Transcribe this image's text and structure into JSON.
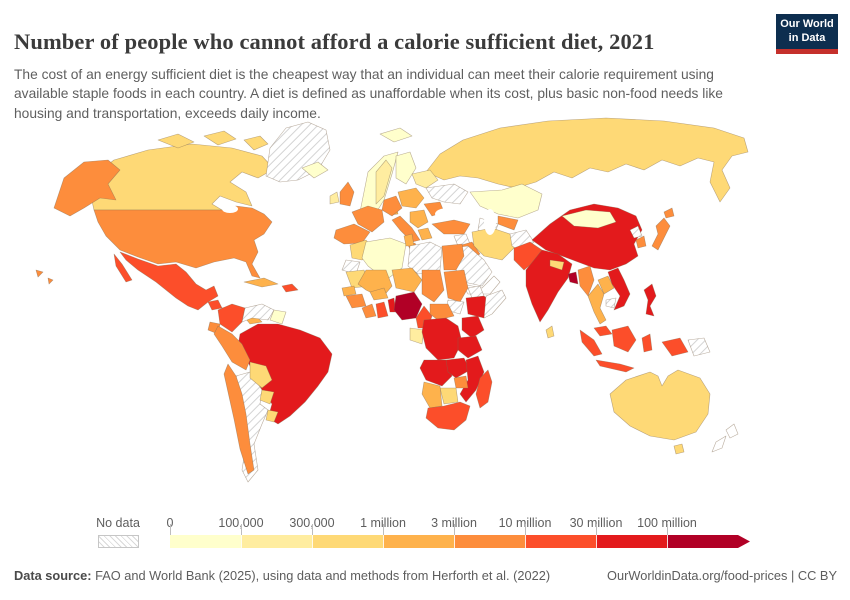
{
  "header": {
    "title": "Number of people who cannot afford a calorie sufficient diet, 2021",
    "subtitle": "The cost of an energy sufficient diet is the cheapest way that an individual can meet their calorie requirement using available staple foods in each country. A diet is defined as unaffordable when its cost, plus basic non-food needs like housing and transportation, exceeds daily income.",
    "logo": {
      "line1": "Our World",
      "line2": "in Data",
      "bg_color": "#0d2e4f",
      "accent_color": "#c5302b"
    }
  },
  "legend": {
    "no_data_label": "No data",
    "labels": [
      "0",
      "100,000",
      "300,000",
      "1 million",
      "3 million",
      "10 million",
      "30 million",
      "100 million"
    ]
  },
  "footer": {
    "source_label": "Data source:",
    "source_text": " FAO and World Bank (2025), using data and methods from Herforth et al. (2022)",
    "right_text": "OurWorldinData.org/food-prices | CC BY"
  },
  "chart_data": {
    "type": "choropleth_map",
    "title": "Number of people who cannot afford a calorie sufficient diet, 2021",
    "year": 2021,
    "unit": "people",
    "legend_labels": [
      "0",
      "100,000",
      "300,000",
      "1 million",
      "3 million",
      "10 million",
      "30 million",
      "100 million"
    ],
    "bin_ranges": [
      "0 to 100,000",
      "100,000 to 300,000",
      "300,000 to 1 million",
      "1 million to 3 million",
      "3 million to 10 million",
      "10 million to 30 million",
      "30 million to 100 million",
      "over 100 million"
    ],
    "colors": [
      "#ffffcc",
      "#ffeda0",
      "#fed976",
      "#feb24c",
      "#fd8d3c",
      "#fc4e2a",
      "#e31a1c",
      "#b10026"
    ],
    "no_data_fill": "hatched",
    "countries": {
      "canada": 2,
      "usa": 4,
      "greenland": "no_data",
      "mexico": 5,
      "guatemala": 5,
      "honduras_nicaragua": 4,
      "costa_rica_panama": 3,
      "cuba": 3,
      "hispaniola": 5,
      "colombia": 5,
      "venezuela": "no_data",
      "guyana_suriname": 0,
      "ecuador": 4,
      "peru": 4,
      "brazil": 6,
      "bolivia": 2,
      "paraguay": 2,
      "uruguay": 2,
      "chile": 4,
      "argentina": "no_data",
      "iceland": 0,
      "uk": 4,
      "ireland": 1,
      "norway_sweden": 0,
      "sweden": 1,
      "finland": 0,
      "denmark": 3,
      "france": 4,
      "spain": 4,
      "germany": 4,
      "poland": 3,
      "italy": 4,
      "balkans": 3,
      "greece": 3,
      "romania": 4,
      "ukraine": "no_data",
      "belarus_baltics": 1,
      "svalbard": 0,
      "russia": 2,
      "kazakhstan": 0,
      "uzbekistan": 4,
      "turkmenistan": "no_data",
      "turkey": 4,
      "syria": "no_data",
      "iraq": 4,
      "iran": 2,
      "saudi_arabia": "no_data",
      "yemen_oman": "blank",
      "afghanistan": "no_data",
      "pakistan": 5,
      "india": 6,
      "nepal": 2,
      "bangladesh": 7,
      "sri_lanka": 2,
      "china": 6,
      "mongolia": 0,
      "north_korea": "no_data",
      "south_korea": 4,
      "japan": 4,
      "myanmar": 4,
      "laos": 3,
      "thailand": 3,
      "cambodia": "no_data",
      "vietnam": 6,
      "malaysia": 5,
      "philippines": 6,
      "indonesia": 5,
      "papua_new_guinea": "no_data",
      "australia": 2,
      "new_zealand": "blank",
      "morocco": 2,
      "western_sahara": "no_data",
      "algeria": 0,
      "tunisia": 3,
      "libya": "no_data",
      "egypt": 4,
      "mauritania": 2,
      "mali": 3,
      "burkina_faso": 3,
      "niger": 3,
      "chad": 4,
      "sudan": 4,
      "south_sudan": "no_data",
      "eritrea": "no_data",
      "ethiopia": 6,
      "somalia": "no_data",
      "senegal": 3,
      "guinea": 4,
      "ivory_coast": 4,
      "ghana": 5,
      "togo_benin": 6,
      "nigeria": 7,
      "cameroon": 5,
      "central_african_republic": 4,
      "gabon_congo": 1,
      "drc": 6,
      "kenya": 6,
      "tanzania": 6,
      "angola": 6,
      "zambia": 6,
      "mozambique": 6,
      "zimbabwe": 4,
      "botswana": 2,
      "namibia": 3,
      "south_africa": 5,
      "madagascar": 5
    }
  }
}
